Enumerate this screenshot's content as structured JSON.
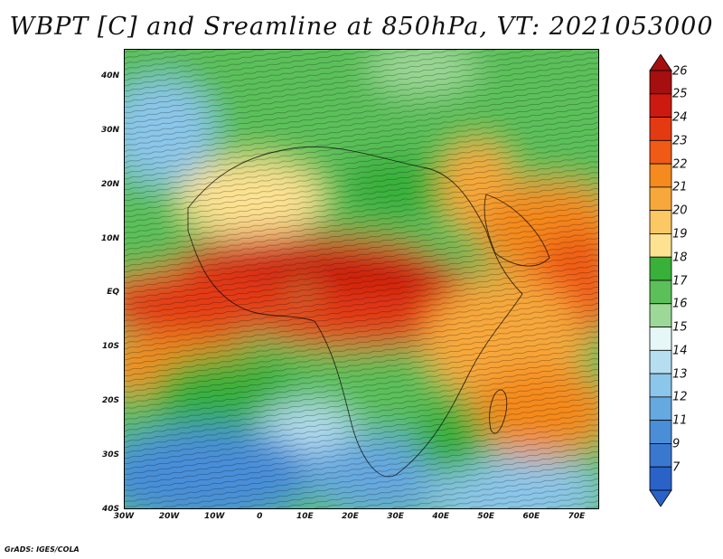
{
  "title": "WBPT [C] and Sreamline at 850hPa, VT: 2021053000",
  "footer": "GrADS: IGES/COLA",
  "map": {
    "lon_range": [
      -30,
      75
    ],
    "lat_range": [
      -40,
      45
    ],
    "lat_ticks": [
      {
        "value": 40,
        "label": "40N"
      },
      {
        "value": 30,
        "label": "30N"
      },
      {
        "value": 20,
        "label": "20N"
      },
      {
        "value": 10,
        "label": "10N"
      },
      {
        "value": 0,
        "label": "EQ"
      },
      {
        "value": -10,
        "label": "10S"
      },
      {
        "value": -20,
        "label": "20S"
      },
      {
        "value": -30,
        "label": "30S"
      },
      {
        "value": -40,
        "label": "40S"
      }
    ],
    "lon_ticks": [
      {
        "value": -30,
        "label": "30W"
      },
      {
        "value": -20,
        "label": "20W"
      },
      {
        "value": -10,
        "label": "10W"
      },
      {
        "value": 0,
        "label": "0"
      },
      {
        "value": 10,
        "label": "10E"
      },
      {
        "value": 20,
        "label": "20E"
      },
      {
        "value": 30,
        "label": "30E"
      },
      {
        "value": 40,
        "label": "40E"
      },
      {
        "value": 50,
        "label": "50E"
      },
      {
        "value": 60,
        "label": "60E"
      },
      {
        "value": 70,
        "label": "70E"
      }
    ]
  },
  "colorbar": {
    "labels": [
      "26",
      "25",
      "24",
      "23",
      "22",
      "21",
      "20",
      "19",
      "18",
      "17",
      "16",
      "15",
      "14",
      "13",
      "12",
      "11",
      "9",
      "7"
    ],
    "colors": [
      "#a50f0f",
      "#cc1a10",
      "#e43a12",
      "#f05a14",
      "#f58a1e",
      "#f8a83a",
      "#fbc864",
      "#fde292",
      "#38b03a",
      "#5cc05a",
      "#9ed898",
      "#e6f7f7",
      "#b6def0",
      "#8cc6ea",
      "#66a8e0",
      "#4a8ed8",
      "#3a78d0",
      "#2a62c8"
    ]
  }
}
